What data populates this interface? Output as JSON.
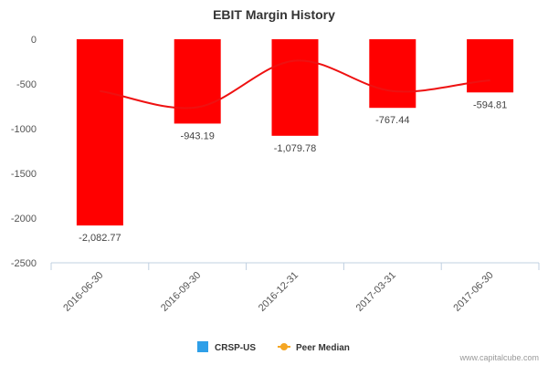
{
  "chart_data": {
    "type": "bar",
    "title": "EBIT Margin History",
    "categories": [
      "2016-06-30",
      "2016-09-30",
      "2016-12-31",
      "2017-03-31",
      "2017-06-30"
    ],
    "series": [
      {
        "name": "CRSP-US",
        "type": "bar",
        "values": [
          -2082.77,
          -943.19,
          -1079.78,
          -767.44,
          -594.81
        ],
        "data_labels": [
          "-2,082.77",
          "-943.19",
          "-1,079.78",
          "-767.44",
          "-594.81"
        ]
      },
      {
        "name": "Peer Median",
        "type": "line",
        "values": [
          -580,
          -760,
          -240,
          -580,
          -460
        ]
      }
    ],
    "ylim": [
      -2500,
      0
    ],
    "yticks": [
      0,
      -500,
      -1000,
      -1500,
      -2000,
      -2500
    ],
    "ytick_labels": [
      "0",
      "-500",
      "-1000",
      "-1500",
      "-2000",
      "-2500"
    ],
    "legend_position": "bottom-center",
    "colors": {
      "bar": "#ff0000",
      "line": "#ee1111",
      "legend_crsp": "#2f9fe8",
      "legend_peer": "#f5a623"
    }
  },
  "credit": "www.capitalcube.com"
}
